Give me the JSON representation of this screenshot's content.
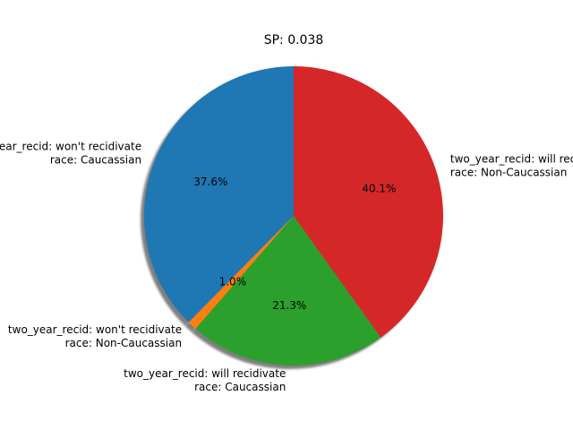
{
  "chart_data": {
    "type": "pie",
    "title": "SP: 0.038",
    "slices": [
      {
        "label_lines": [
          "two_year_recid: won't recidivate",
          "race: Caucassian"
        ],
        "value": 37.6,
        "pct_label": "37.6%",
        "color": "#1f77b4"
      },
      {
        "label_lines": [
          "two_year_recid: won't recidivate",
          "race: Non-Caucassian"
        ],
        "value": 1.0,
        "pct_label": "1.0%",
        "color": "#ff7f0e"
      },
      {
        "label_lines": [
          "two_year_recid: will recidivate",
          "race: Caucassian"
        ],
        "value": 21.3,
        "pct_label": "21.3%",
        "color": "#2ca02c"
      },
      {
        "label_lines": [
          "two_year_recid: will recidivate",
          "race: Non-Caucassian"
        ],
        "value": 40.1,
        "pct_label": "40.1%",
        "color": "#d62728"
      }
    ],
    "start_angle_deg": 90,
    "direction": "counterclockwise",
    "shadow": true,
    "legend": "none",
    "grid": false
  }
}
